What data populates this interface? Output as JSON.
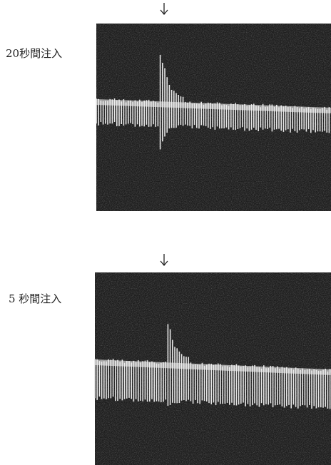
{
  "panels": [
    {
      "label": "20秒間注入"
    },
    {
      "label": "5 秒間注入"
    }
  ]
}
